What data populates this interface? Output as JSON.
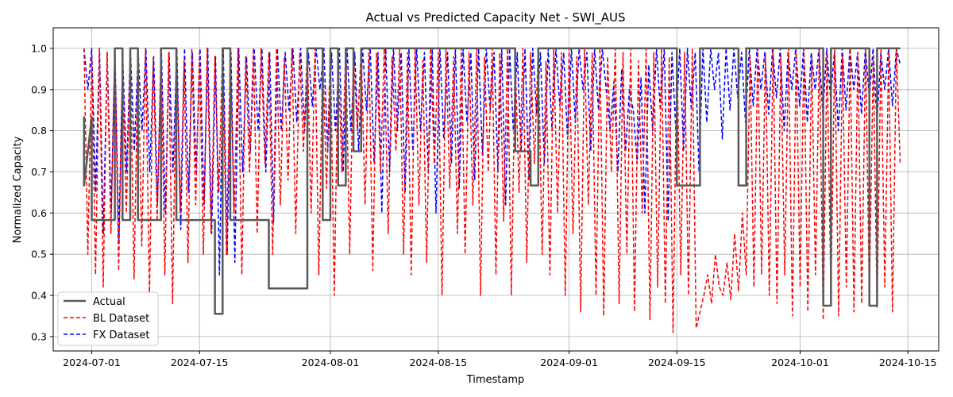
{
  "chart_data": {
    "type": "line",
    "title": "Actual vs Predicted Capacity Net - SWI_AUS",
    "xlabel": "Timestamp",
    "ylabel": "Normalized Capacity",
    "x_range": [
      "2024-06-26",
      "2024-10-19"
    ],
    "ylim": [
      0.265,
      1.05
    ],
    "x_ticks": [
      "2024-07-01",
      "2024-07-15",
      "2024-08-01",
      "2024-08-15",
      "2024-09-01",
      "2024-09-15",
      "2024-10-01",
      "2024-10-15"
    ],
    "y_ticks": [
      0.3,
      0.4,
      0.5,
      0.6,
      0.7,
      0.8,
      0.9,
      1.0
    ],
    "grid": true,
    "legend_position": "lower-left",
    "series": [
      {
        "name": "Actual",
        "style": "solid",
        "color": "#595959",
        "x": [
          "2024-06-30",
          "2024-06-30",
          "2024-06-30",
          "2024-06-30",
          "2024-07-01",
          "2024-07-01",
          "2024-07-04",
          "2024-07-04",
          "2024-07-05",
          "2024-07-05",
          "2024-07-06",
          "2024-07-06",
          "2024-07-07",
          "2024-07-07",
          "2024-07-10",
          "2024-07-10",
          "2024-07-12",
          "2024-07-12",
          "2024-07-15",
          "2024-07-15",
          "2024-07-17",
          "2024-07-17",
          "2024-07-18",
          "2024-07-18",
          "2024-07-19",
          "2024-07-19",
          "2024-07-22",
          "2024-07-22",
          "2024-07-24",
          "2024-07-24",
          "2024-07-25",
          "2024-07-25",
          "2024-07-29",
          "2024-07-29",
          "2024-07-31",
          "2024-07-31",
          "2024-08-01",
          "2024-08-01",
          "2024-08-02",
          "2024-08-02",
          "2024-08-03",
          "2024-08-03",
          "2024-08-04",
          "2024-08-04",
          "2024-08-05",
          "2024-08-05",
          "2024-08-06",
          "2024-08-06",
          "2024-08-25",
          "2024-08-25",
          "2024-08-27",
          "2024-08-27",
          "2024-08-28",
          "2024-08-28",
          "2024-09-15",
          "2024-09-15",
          "2024-09-18",
          "2024-09-18",
          "2024-09-23",
          "2024-09-23",
          "2024-09-24",
          "2024-09-24",
          "2024-10-04",
          "2024-10-04",
          "2024-10-05",
          "2024-10-05",
          "2024-10-10",
          "2024-10-10",
          "2024-10-11",
          "2024-10-11",
          "2024-10-14"
        ],
        "values": [
          0.833,
          0.667,
          0.833,
          0.667,
          0.833,
          0.583,
          0.583,
          1.0,
          1.0,
          0.583,
          0.583,
          1.0,
          1.0,
          0.583,
          0.583,
          1.0,
          1.0,
          0.583,
          0.583,
          0.583,
          0.583,
          0.355,
          0.355,
          1.0,
          1.0,
          0.583,
          0.583,
          0.583,
          0.583,
          0.417,
          0.417,
          0.417,
          0.417,
          1.0,
          1.0,
          0.583,
          0.583,
          1.0,
          1.0,
          0.667,
          0.667,
          1.0,
          1.0,
          0.75,
          0.75,
          1.0,
          1.0,
          1.0,
          1.0,
          0.75,
          0.75,
          0.667,
          0.667,
          1.0,
          1.0,
          0.667,
          0.667,
          1.0,
          1.0,
          0.667,
          0.667,
          1.0,
          1.0,
          0.375,
          0.375,
          1.0,
          1.0,
          0.375,
          0.375,
          1.0,
          1.0
        ]
      },
      {
        "name": "BL Dataset",
        "style": "dashed",
        "color": "#ff0000",
        "x_start": "2024-06-30",
        "x_end": "2024-10-14",
        "values": [
          1.0,
          0.5,
          0.98,
          0.45,
          1.0,
          0.42,
          0.99,
          0.55,
          1.0,
          0.46,
          0.97,
          0.6,
          1.0,
          0.44,
          0.99,
          0.52,
          1.0,
          0.4,
          0.98,
          0.58,
          1.0,
          0.45,
          0.99,
          0.38,
          1.0,
          0.6,
          0.97,
          0.48,
          1.0,
          0.62,
          0.99,
          0.5,
          1.0,
          0.55,
          0.98,
          0.65,
          1.0,
          0.5,
          0.99,
          0.6,
          1.0,
          0.45,
          0.98,
          0.7,
          1.0,
          0.55,
          1.0,
          0.72,
          0.99,
          0.5,
          1.0,
          0.62,
          0.98,
          0.68,
          1.0,
          0.55,
          0.99,
          0.75,
          1.0,
          0.6,
          1.0,
          0.45,
          0.99,
          0.66,
          1.0,
          0.4,
          0.98,
          0.7,
          1.0,
          0.5,
          0.99,
          0.8,
          1.0,
          0.62,
          1.0,
          0.46,
          0.99,
          0.7,
          1.0,
          0.55,
          0.98,
          0.75,
          1.0,
          0.5,
          0.99,
          0.45,
          1.0,
          0.62,
          0.97,
          0.48,
          1.0,
          0.72,
          0.99,
          0.4,
          1.0,
          0.66,
          0.98,
          0.55,
          1.0,
          0.5,
          0.99,
          0.62,
          1.0,
          0.4,
          0.98,
          0.7,
          1.0,
          0.45,
          0.99,
          0.58,
          1.0,
          0.4,
          0.98,
          0.65,
          1.0,
          0.48,
          0.99,
          0.72,
          1.0,
          0.5,
          0.97,
          0.45,
          1.0,
          0.6,
          0.99,
          0.4,
          1.0,
          0.55,
          0.98,
          0.36,
          1.0,
          0.62,
          0.99,
          0.4,
          1.0,
          0.35,
          0.98,
          0.7,
          1.0,
          0.38,
          0.99,
          0.5,
          1.0,
          0.36,
          0.97,
          0.6,
          1.0,
          0.34,
          0.99,
          0.42,
          1.0,
          0.38,
          0.98,
          0.31,
          1.0,
          0.45,
          0.99,
          0.4,
          1.0,
          0.32,
          0.36,
          0.4,
          0.45,
          0.38,
          0.5,
          0.42,
          0.4,
          0.48,
          0.39,
          0.55,
          0.41,
          0.6,
          0.45,
          0.98,
          0.42,
          1.0,
          0.45,
          0.99,
          0.4,
          1.0,
          0.38,
          0.98,
          0.45,
          1.0,
          0.35,
          0.99,
          0.42,
          1.0,
          0.36,
          0.98,
          0.45,
          1.0,
          0.34,
          0.99,
          0.4,
          1.0,
          0.35,
          0.98,
          0.42,
          1.0,
          0.36,
          0.99,
          0.38,
          1.0,
          0.4,
          0.98,
          0.37,
          1.0,
          0.42,
          0.99,
          0.36,
          1.0,
          0.72
        ]
      },
      {
        "name": "FX Dataset",
        "style": "dashed",
        "color": "#0000ff",
        "x_start": "2024-06-30",
        "x_end": "2024-10-14",
        "values": [
          1.0,
          0.9,
          1.0,
          0.65,
          1.0,
          0.55,
          0.99,
          0.6,
          1.0,
          0.53,
          0.98,
          0.7,
          1.0,
          0.75,
          0.99,
          0.8,
          1.0,
          0.7,
          0.98,
          0.62,
          1.0,
          0.6,
          0.99,
          0.7,
          1.0,
          0.56,
          1.0,
          0.65,
          0.99,
          0.7,
          1.0,
          0.62,
          1.0,
          0.55,
          0.98,
          0.45,
          1.0,
          0.5,
          0.99,
          0.48,
          1.0,
          0.7,
          0.98,
          0.75,
          1.0,
          0.8,
          1.0,
          0.7,
          0.99,
          0.58,
          1.0,
          0.8,
          0.99,
          0.85,
          1.0,
          0.82,
          1.0,
          0.8,
          0.99,
          0.86,
          1.0,
          0.9,
          1.0,
          0.75,
          0.99,
          0.8,
          1.0,
          0.7,
          1.0,
          0.8,
          0.99,
          0.75,
          1.0,
          0.85,
          1.0,
          0.72,
          0.99,
          0.6,
          1.0,
          0.7,
          1.0,
          0.8,
          0.99,
          0.65,
          1.0,
          0.75,
          1.0,
          0.8,
          0.99,
          0.7,
          1.0,
          0.6,
          1.0,
          0.78,
          0.99,
          0.72,
          1.0,
          0.66,
          1.0,
          0.82,
          0.99,
          0.68,
          1.0,
          0.74,
          1.0,
          0.85,
          0.99,
          0.7,
          1.0,
          0.62,
          1.0,
          0.8,
          0.99,
          0.75,
          1.0,
          0.68,
          1.0,
          0.84,
          0.99,
          0.72,
          1.0,
          0.8,
          1.0,
          0.86,
          0.99,
          0.78,
          1.0,
          0.82,
          1.0,
          0.9,
          0.99,
          0.75,
          1.0,
          0.85,
          1.0,
          0.9,
          0.8,
          0.92,
          0.7,
          0.95,
          0.75,
          0.9,
          0.85,
          0.72,
          0.93,
          0.6,
          0.96,
          0.8,
          1.0,
          0.85,
          1.0,
          0.58,
          0.99,
          0.8,
          1.0,
          0.75,
          1.0,
          0.85,
          0.99,
          0.7,
          1.0,
          0.82,
          1.0,
          0.9,
          0.99,
          0.78,
          1.0,
          0.85,
          1.0,
          0.88,
          0.99,
          0.82,
          1.0,
          0.86,
          1.0,
          0.9,
          0.99,
          0.84,
          1.0,
          0.88,
          1.0,
          0.8,
          0.99,
          0.9,
          1.0,
          0.86,
          1.0,
          0.82,
          0.99,
          0.9,
          1.0,
          0.84,
          1.0,
          0.88,
          0.99,
          0.8,
          1.0,
          0.85,
          1.0,
          0.9,
          0.99,
          0.84,
          1.0,
          0.88,
          1.0,
          0.82,
          0.99,
          0.9,
          1.0,
          0.86,
          1.0,
          0.96
        ]
      }
    ]
  }
}
